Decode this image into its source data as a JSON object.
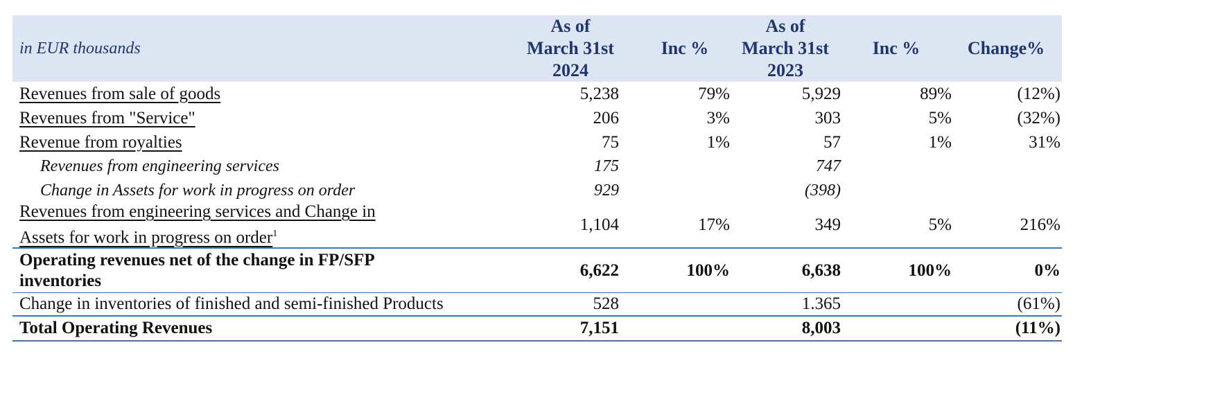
{
  "header": {
    "unit_label": "in EUR thousands",
    "col1": [
      "As of",
      "March 31st",
      "2024"
    ],
    "col2": "Inc %",
    "col3": [
      "As of",
      "March 31st",
      "2023"
    ],
    "col4": "Inc %",
    "col5": "Change%"
  },
  "rows": [
    {
      "label": "Revenues from sale of goods",
      "v2024": "5,238",
      "inc2024": "79%",
      "v2023": "5,929",
      "inc2023": "89%",
      "change": "(12%)"
    },
    {
      "label": "Revenues from \"Service\"",
      "v2024": "206",
      "inc2024": "3%",
      "v2023": "303",
      "inc2023": "5%",
      "change": "(32%)"
    },
    {
      "label": "Revenue from royalties",
      "v2024": "75",
      "inc2024": "1%",
      "v2023": "57",
      "inc2023": "1%",
      "change": "31%"
    },
    {
      "label": "Revenues from engineering services",
      "v2024": "175",
      "v2023": "747"
    },
    {
      "label": "Change in Assets for work in progress on order",
      "v2024": "929",
      "v2023": "(398)"
    },
    {
      "label_line1": "Revenues from engineering services and Change in",
      "label_line2": "Assets for work in progress on order",
      "footnote": "1",
      "v2024": "1,104",
      "inc2024": "17%",
      "v2023": "349",
      "inc2023": "5%",
      "change": "216%"
    },
    {
      "label_line1": "Operating revenues net of the change in FP/SFP",
      "label_line2": "inventories",
      "v2024": "6,622",
      "inc2024": "100%",
      "v2023": "6,638",
      "inc2023": "100%",
      "change": "0%"
    },
    {
      "label": "Change in inventories of finished and semi-finished Products",
      "v2024": "528",
      "v2023": "1.365",
      "change": "(61%)"
    },
    {
      "label": "Total Operating Revenues",
      "v2024": "7,151",
      "v2023": "8,003",
      "change": "(11%)"
    }
  ]
}
